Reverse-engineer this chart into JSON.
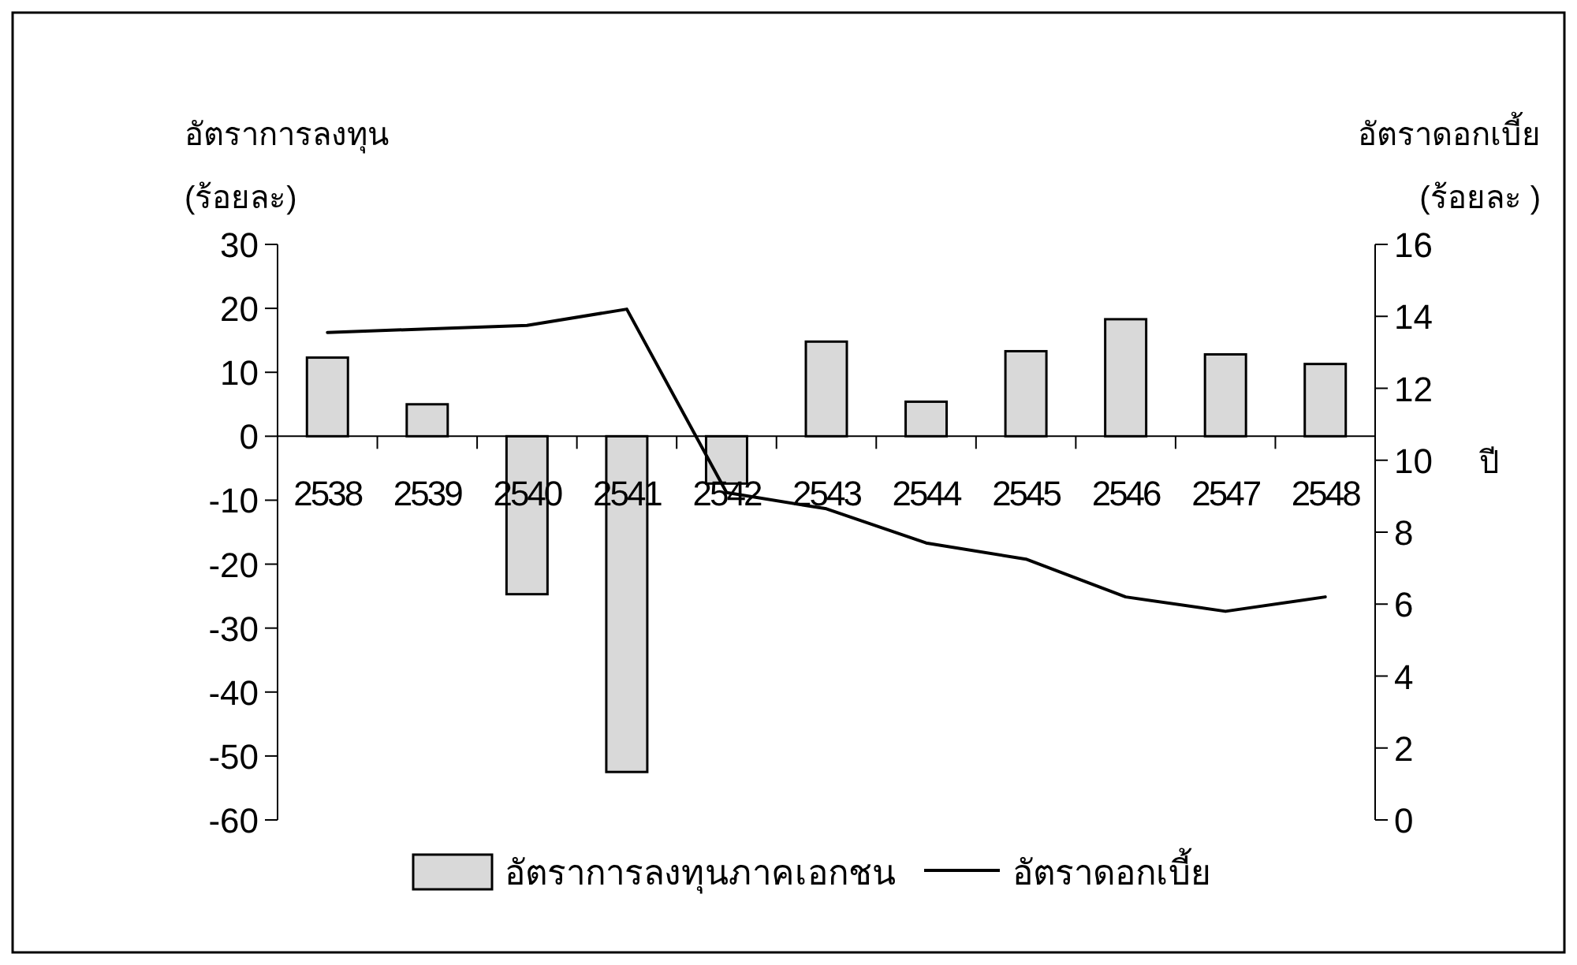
{
  "chart_data": {
    "type": "bar",
    "categories": [
      "2538",
      "2539",
      "2540",
      "2541",
      "2542",
      "2543",
      "2544",
      "2545",
      "2546",
      "2547",
      "2548"
    ],
    "series": [
      {
        "name": "อัตราการลงทุนภาคเอกชน",
        "color": "#d9d9d9",
        "values": [
          12.3,
          5,
          -24.7,
          -52.5,
          -7.4,
          14.8,
          5.4,
          13.3,
          18.3,
          12.8,
          11.3
        ]
      },
      {
        "name": "อัตราดอกเบี้ย",
        "type": "line",
        "axis": "y2",
        "color": "#000000",
        "values": [
          13.55,
          13.65,
          13.75,
          14.2,
          9.1,
          8.65,
          7.7,
          7.25,
          6.2,
          5.8,
          6.2
        ]
      }
    ],
    "ylabel": "อัตราการลงทุน\n(ร้อยละ)",
    "y2label": "อัตราดอกเบี้ย\n(ร้อยละ )",
    "xlabel": "ปี",
    "ylim": [
      -60,
      30
    ],
    "yticks": [
      -60,
      -50,
      -40,
      -30,
      -20,
      -10,
      0,
      10,
      20,
      30
    ],
    "y2lim": [
      0,
      16
    ],
    "y2ticks": [
      0,
      2,
      4,
      6,
      8,
      10,
      12,
      14,
      16
    ],
    "grid": false,
    "legend": "bottom"
  }
}
